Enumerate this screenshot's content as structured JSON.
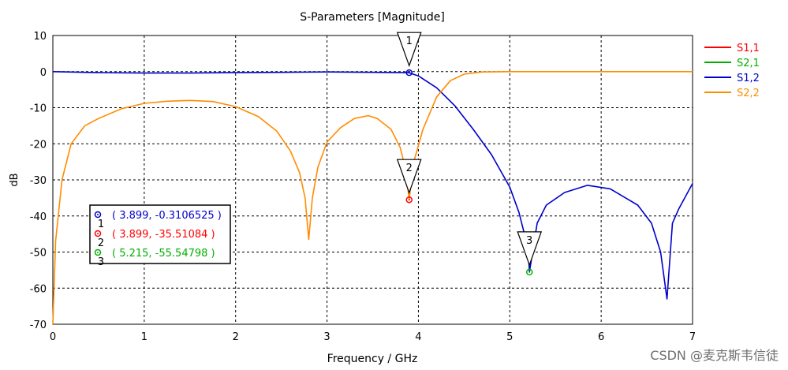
{
  "chart_data": {
    "type": "line",
    "title": "S-Parameters [Magnitude]",
    "xlabel": "Frequency / GHz",
    "ylabel": "dB",
    "xlim": [
      0,
      7
    ],
    "ylim": [
      -70,
      10
    ],
    "xticks": [
      0,
      1,
      2,
      3,
      4,
      5,
      6,
      7
    ],
    "yticks": [
      10,
      0,
      -10,
      -20,
      -30,
      -40,
      -50,
      -60,
      -70
    ],
    "grid": true,
    "legend_position": "right",
    "series": [
      {
        "name": "S1,1",
        "color": "#ff0000",
        "x": [],
        "y": []
      },
      {
        "name": "S2,1",
        "color": "#00b000",
        "x": [],
        "y": []
      },
      {
        "name": "S1,2",
        "color": "#0000cc",
        "x": [
          0,
          0.5,
          1.0,
          1.5,
          2.0,
          2.5,
          3.0,
          3.5,
          3.899,
          4.0,
          4.2,
          4.4,
          4.6,
          4.8,
          5.0,
          5.1,
          5.2,
          5.215,
          5.3,
          5.4,
          5.6,
          5.85,
          6.1,
          6.4,
          6.55,
          6.65,
          6.72,
          6.78,
          6.85,
          7.0
        ],
        "y": [
          0,
          -0.3,
          -0.4,
          -0.4,
          -0.3,
          -0.2,
          -0.1,
          -0.2,
          -0.31,
          -1.2,
          -4.5,
          -9.5,
          -16,
          -23,
          -32,
          -39,
          -49,
          -55.5,
          -42,
          -37,
          -33.5,
          -31.5,
          -32.5,
          -37,
          -42,
          -50,
          -63,
          -42,
          -38,
          -31
        ]
      },
      {
        "name": "S2,2",
        "color": "#ff8c00",
        "x": [
          0,
          0.03,
          0.1,
          0.2,
          0.35,
          0.5,
          0.75,
          1.0,
          1.25,
          1.5,
          1.75,
          2.0,
          2.25,
          2.45,
          2.6,
          2.7,
          2.76,
          2.8,
          2.84,
          2.9,
          3.0,
          3.15,
          3.3,
          3.45,
          3.55,
          3.7,
          3.8,
          3.86,
          3.899,
          3.95,
          4.05,
          4.2,
          4.35,
          4.5,
          4.7,
          5.0,
          6.0,
          7.0
        ],
        "y": [
          -70,
          -47,
          -30,
          -20,
          -15,
          -13,
          -10.3,
          -8.8,
          -8.2,
          -8,
          -8.3,
          -9.7,
          -12.5,
          -16.5,
          -22,
          -28,
          -35,
          -46.5,
          -35,
          -26.5,
          -19.5,
          -15.5,
          -13,
          -12.2,
          -13,
          -16,
          -21,
          -27,
          -35.5,
          -25,
          -16,
          -7,
          -2.5,
          -0.7,
          -0.1,
          0,
          0,
          0
        ]
      }
    ],
    "markers": [
      {
        "label": "1",
        "x": 3.899,
        "y": -0.3106525,
        "color": "#0000cc"
      },
      {
        "label": "2",
        "x": 3.899,
        "y": -35.51084,
        "color": "#ff0000"
      },
      {
        "label": "3",
        "x": 5.215,
        "y": -55.54798,
        "color": "#00b000"
      }
    ],
    "marker_box": [
      {
        "label": "1",
        "text": "( 3.899, -0.3106525 )",
        "color": "#0000cc"
      },
      {
        "label": "2",
        "text": "( 3.899, -35.51084 )",
        "color": "#ff0000"
      },
      {
        "label": "3",
        "text": "( 5.215, -55.54798 )",
        "color": "#00b000"
      }
    ]
  },
  "watermark": "CSDN @麦克斯韦信徒"
}
